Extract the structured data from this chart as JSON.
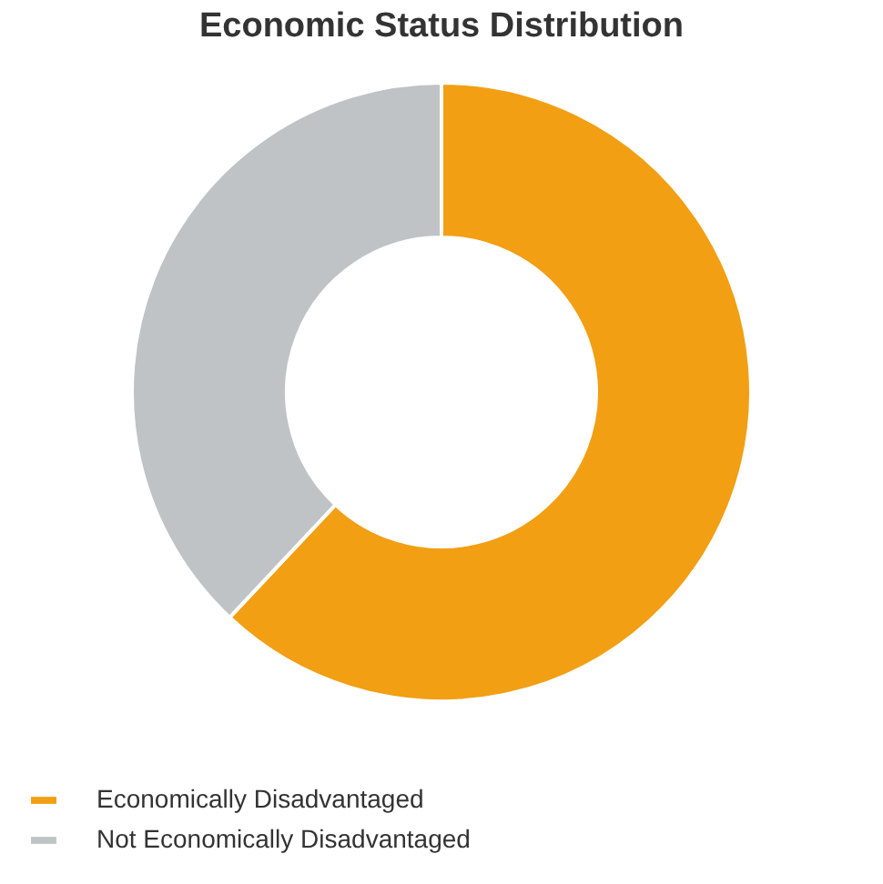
{
  "chart_data": {
    "type": "donut",
    "title": "Economic Status Distribution",
    "categories": [
      "Economically Disadvantaged",
      "Not Economically Disadvantaged"
    ],
    "values": [
      62,
      38
    ],
    "colors": [
      "#f29f13",
      "#bfc3c6"
    ],
    "legend": "bottom"
  }
}
